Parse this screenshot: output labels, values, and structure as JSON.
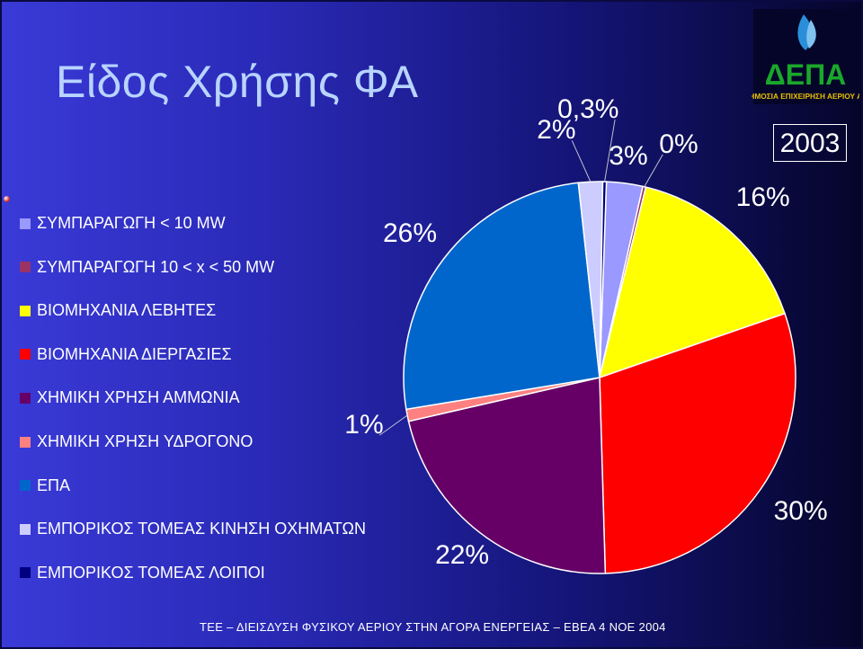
{
  "title": "Είδος Χρήσης ΦΑ",
  "year": "2003",
  "logo": {
    "name": "ΔΕΠΑ",
    "subtitle": "ΔΗΜΟΣΙΑ ΕΠΙΧΕΙΡΗΣΗ ΑΕΡΙΟΥ ΑΕ"
  },
  "footer": "ΤΕΕ – ΔΙΕΙΣΔΥΣΗ ΦΥΣΙΚΟΥ ΑΕΡΙΟΥ ΣΤΗΝ ΑΓΟΡΑ ΕΝΕΡΓΕΙΑΣ – ΕΒΕΑ 4 ΝΟΕ 2004",
  "chart_data": {
    "type": "pie",
    "title": "Είδος Χρήσης ΦΑ",
    "legend_position": "left",
    "categories": [
      "ΣΥΜΠΑΡΑΓΩΓΗ < 10 MW",
      "ΣΥΜΠΑΡΑΓΩΓΗ 10 < x < 50 MW",
      "ΒΙΟΜΗΧΑΝΙΑ ΛΕΒΗΤΕΣ",
      "ΒΙΟΜΗΧΑΝΙΑ ΔΙΕΡΓΑΣΙΕΣ",
      "ΧΗΜΙΚΗ ΧΡΗΣΗ ΑΜΜΩΝΙΑ",
      "ΧΗΜΙΚΗ ΧΡΗΣΗ ΥΔΡΟΓΟΝΟ",
      "ΕΠΑ",
      "ΕΜΠΟΡΙΚΟΣ ΤΟΜΕΑΣ ΚΙΝΗΣΗ ΟΧΗΜΑΤΩΝ",
      "ΕΜΠΟΡΙΚΟΣ ΤΟΜΕΑΣ ΛΟΙΠΟΙ"
    ],
    "values": [
      3,
      0,
      16,
      30,
      22,
      1,
      26,
      2,
      0.3
    ],
    "value_labels": [
      "3%",
      "0%",
      "16%",
      "30%",
      "22%",
      "1%",
      "26%",
      "2%",
      "0,3%"
    ],
    "colors": [
      "#9999ff",
      "#993366",
      "#ffff00",
      "#ff0000",
      "#660066",
      "#ff8080",
      "#0066cc",
      "#ccccff",
      "#000080"
    ]
  }
}
